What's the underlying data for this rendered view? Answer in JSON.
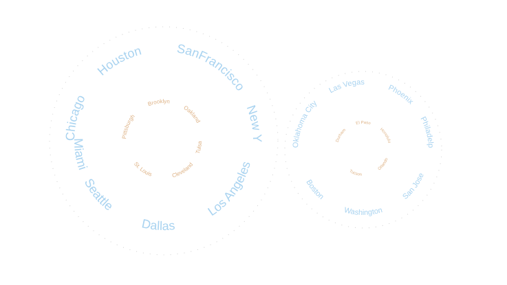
{
  "colors": {
    "outer_label": "#a9d3f0",
    "inner_label": "#ddb184",
    "dot": "#c9c9c9",
    "background": "#ffffff"
  },
  "clusters": [
    {
      "outer_ring": [
        "Houston",
        "SanFrancisco",
        "New York",
        "Los Angeles",
        "Dallas",
        "Seattle",
        "Miami",
        "Chicago"
      ],
      "inner_ring": [
        "Brooklyn",
        "Oakland",
        "Tulsa",
        "Cleveland",
        "St. Louis",
        "Pittsburgh"
      ]
    },
    {
      "outer_ring": [
        "Las Vegas",
        "Phoenix",
        "Philadelphia",
        "San Jose",
        "Washington",
        "Boston",
        "Oklahoma City"
      ],
      "inner_ring": [
        "El Paso",
        "Honolulu",
        "Orlando",
        "Tucson",
        "Durham"
      ]
    }
  ]
}
